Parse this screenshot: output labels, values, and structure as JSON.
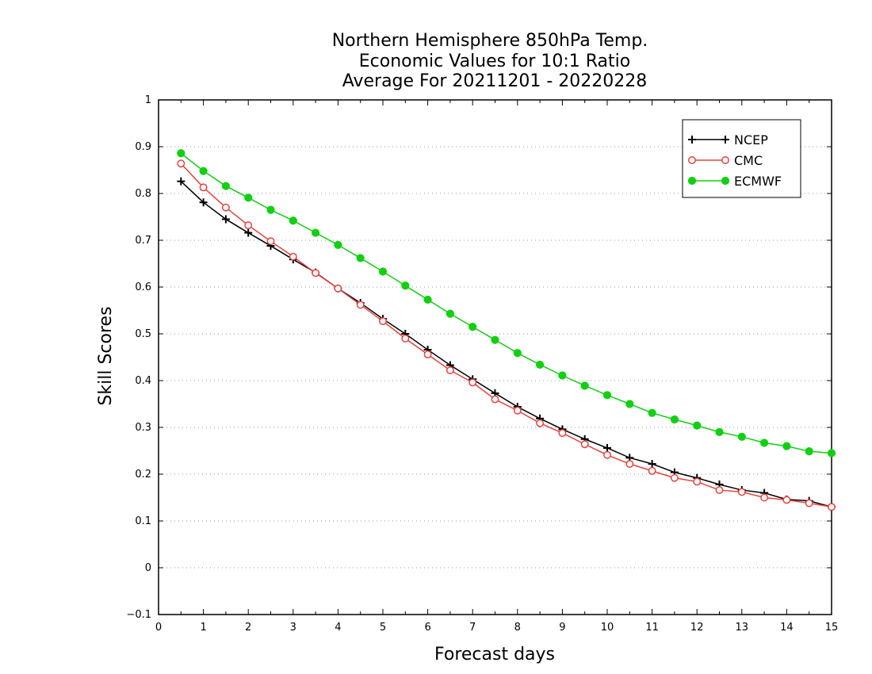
{
  "chart_data": {
    "type": "line",
    "title_lines": [
      "Northern Hemisphere 850hPa Temp.",
      "Economic Values for 10:1 Ratio",
      "Average For 20211201 - 20220228"
    ],
    "xlabel": "Forecast days",
    "ylabel": "Skill Scores",
    "xlim": [
      0,
      15
    ],
    "ylim": [
      -0.1,
      1
    ],
    "xticks": [
      "0",
      "1",
      "2",
      "3",
      "4",
      "5",
      "6",
      "7",
      "8",
      "9",
      "10",
      "11",
      "12",
      "13",
      "14",
      "15"
    ],
    "yticks": [
      "−0.1",
      "0",
      "0.1",
      "0.2",
      "0.3",
      "0.4",
      "0.5",
      "0.6",
      "0.7",
      "0.8",
      "0.9",
      "1"
    ],
    "grid": "horizontal dotted",
    "legend_position": "top-right",
    "x": [
      0.5,
      1,
      1.5,
      2,
      2.5,
      3,
      3.5,
      4,
      4.5,
      5,
      5.5,
      6,
      6.5,
      7,
      7.5,
      8,
      8.5,
      9,
      9.5,
      10,
      10.5,
      11,
      11.5,
      12,
      12.5,
      13,
      13.5,
      14,
      14.5,
      15
    ],
    "series": [
      {
        "name": "NCEP",
        "color": "#000000",
        "marker": "plus",
        "values": [
          0.826,
          0.781,
          0.745,
          0.716,
          0.688,
          0.659,
          0.631,
          0.597,
          0.566,
          0.532,
          0.5,
          0.466,
          0.433,
          0.403,
          0.373,
          0.344,
          0.319,
          0.296,
          0.275,
          0.256,
          0.235,
          0.222,
          0.204,
          0.192,
          0.178,
          0.166,
          0.16,
          0.146,
          0.143,
          0.13
        ]
      },
      {
        "name": "CMC",
        "color": "#e8413c",
        "marker": "open-circle",
        "values": [
          0.864,
          0.813,
          0.77,
          0.732,
          0.698,
          0.665,
          0.63,
          0.597,
          0.562,
          0.527,
          0.49,
          0.456,
          0.422,
          0.396,
          0.36,
          0.336,
          0.309,
          0.288,
          0.264,
          0.241,
          0.222,
          0.207,
          0.192,
          0.184,
          0.166,
          0.162,
          0.15,
          0.145,
          0.138,
          0.13
        ]
      },
      {
        "name": "ECMWF",
        "color": "#11d011",
        "marker": "filled-circle",
        "values": [
          0.886,
          0.848,
          0.816,
          0.791,
          0.765,
          0.742,
          0.716,
          0.69,
          0.662,
          0.633,
          0.603,
          0.573,
          0.543,
          0.515,
          0.487,
          0.459,
          0.434,
          0.411,
          0.389,
          0.369,
          0.35,
          0.331,
          0.317,
          0.304,
          0.29,
          0.28,
          0.267,
          0.26,
          0.249,
          0.245
        ]
      }
    ]
  }
}
